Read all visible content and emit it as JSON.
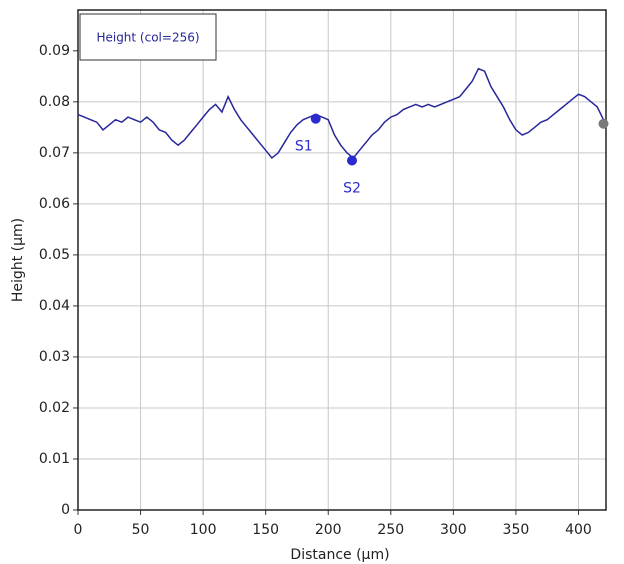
{
  "chart_data": {
    "type": "line",
    "xlabel": "Distance (µm)",
    "ylabel": "Height (µm)",
    "x": [
      0,
      5,
      10,
      15,
      20,
      25,
      30,
      35,
      40,
      45,
      50,
      55,
      60,
      65,
      70,
      75,
      80,
      85,
      90,
      95,
      100,
      105,
      110,
      115,
      120,
      125,
      130,
      135,
      140,
      145,
      150,
      155,
      160,
      165,
      170,
      175,
      180,
      185,
      190,
      195,
      200,
      205,
      210,
      215,
      220,
      225,
      230,
      235,
      240,
      245,
      250,
      255,
      260,
      265,
      270,
      275,
      280,
      285,
      290,
      295,
      300,
      305,
      310,
      315,
      320,
      325,
      330,
      335,
      340,
      345,
      350,
      355,
      360,
      365,
      370,
      375,
      380,
      385,
      390,
      395,
      400,
      405,
      410,
      415,
      420
    ],
    "series": [
      {
        "name": "Height (col=256)",
        "color": "#27279a",
        "values": [
          0.0775,
          0.077,
          0.0765,
          0.076,
          0.0745,
          0.0755,
          0.0765,
          0.076,
          0.077,
          0.0765,
          0.076,
          0.077,
          0.076,
          0.0745,
          0.074,
          0.0725,
          0.0715,
          0.0725,
          0.074,
          0.0755,
          0.077,
          0.0785,
          0.0795,
          0.078,
          0.081,
          0.0785,
          0.0765,
          0.075,
          0.0735,
          0.072,
          0.0705,
          0.069,
          0.07,
          0.072,
          0.074,
          0.0755,
          0.0765,
          0.077,
          0.0775,
          0.077,
          0.0765,
          0.0735,
          0.0715,
          0.07,
          0.069,
          0.0705,
          0.072,
          0.0735,
          0.0745,
          0.076,
          0.077,
          0.0775,
          0.0785,
          0.079,
          0.0795,
          0.079,
          0.0795,
          0.079,
          0.0795,
          0.08,
          0.0805,
          0.081,
          0.0825,
          0.084,
          0.0865,
          0.086,
          0.083,
          0.081,
          0.079,
          0.0765,
          0.0745,
          0.0735,
          0.074,
          0.075,
          0.076,
          0.0765,
          0.0775,
          0.0785,
          0.0795,
          0.0805,
          0.0815,
          0.081,
          0.08,
          0.079,
          0.0765
        ]
      }
    ],
    "markers": [
      {
        "label": "S1",
        "x": 190,
        "y": 0.0767,
        "color": "#2a2ad0"
      },
      {
        "label": "S2",
        "x": 219,
        "y": 0.0685,
        "color": "#2a2ad0"
      }
    ],
    "end_marker": {
      "x": 420,
      "y": 0.0757,
      "color": "#7a7a7a"
    },
    "xlim": [
      0,
      422
    ],
    "ylim": [
      0,
      0.098
    ],
    "xticks": [
      0,
      50,
      100,
      150,
      200,
      250,
      300,
      350,
      400
    ],
    "yticks": [
      0,
      0.01,
      0.02,
      0.03,
      0.04,
      0.05,
      0.06,
      0.07,
      0.08,
      0.09
    ],
    "grid": true
  }
}
